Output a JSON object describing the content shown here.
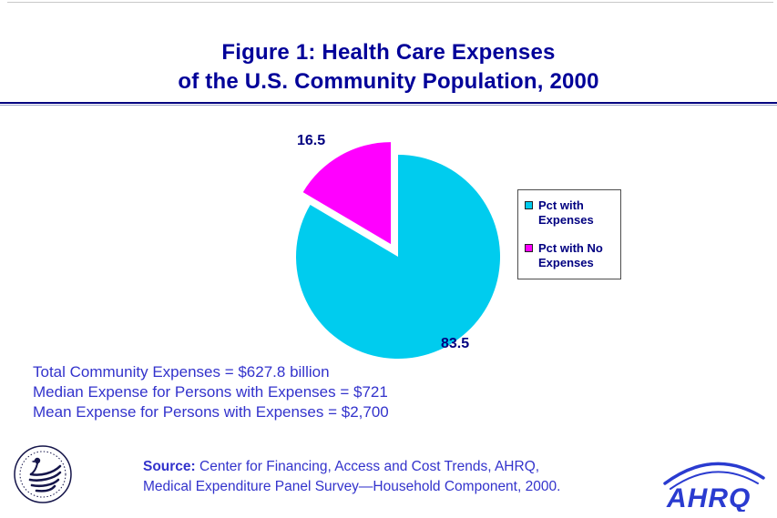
{
  "title": {
    "line1": "Figure 1: Health Care Expenses",
    "line2": "of the U.S. Community Population, 2000"
  },
  "chart_data": {
    "type": "pie",
    "title": "Figure 1: Health Care Expenses of the U.S. Community Population, 2000",
    "units": "percent",
    "legend_position": "right",
    "data_labels_shown": true,
    "slices": [
      {
        "label": "Pct with Expenses",
        "value": 83.5,
        "display": "83.5",
        "color": "#00CCEE",
        "exploded": false
      },
      {
        "label": "Pct with No Expenses",
        "value": 16.5,
        "display": "16.5",
        "color": "#FF00FF",
        "exploded": true
      }
    ]
  },
  "legend": {
    "items": [
      {
        "label": "Pct with Expenses",
        "color": "#00CCEE"
      },
      {
        "label": "Pct with No Expenses",
        "color": "#FF00FF"
      }
    ]
  },
  "stats": {
    "line1": "Total Community Expenses = $627.8 billion",
    "line2": "Median Expense for Persons with Expenses = $721",
    "line3": "Mean Expense for Persons with Expenses = $2,700"
  },
  "footer": {
    "source_label": "Source:",
    "source_line1": " Center for Financing, Access and Cost Trends, AHRQ,",
    "source_line2": "Medical Expenditure Panel Survey—Household Component, 2000.",
    "ahrq_logo": "AHRQ",
    "hhs_logo_name": "hhs-seal"
  },
  "colors": {
    "title_text": "#000099",
    "body_text": "#3333CC",
    "label_navy": "#000080",
    "slice_cyan": "#00CCEE",
    "slice_magenta": "#FF00FF",
    "rule": "#000080"
  }
}
